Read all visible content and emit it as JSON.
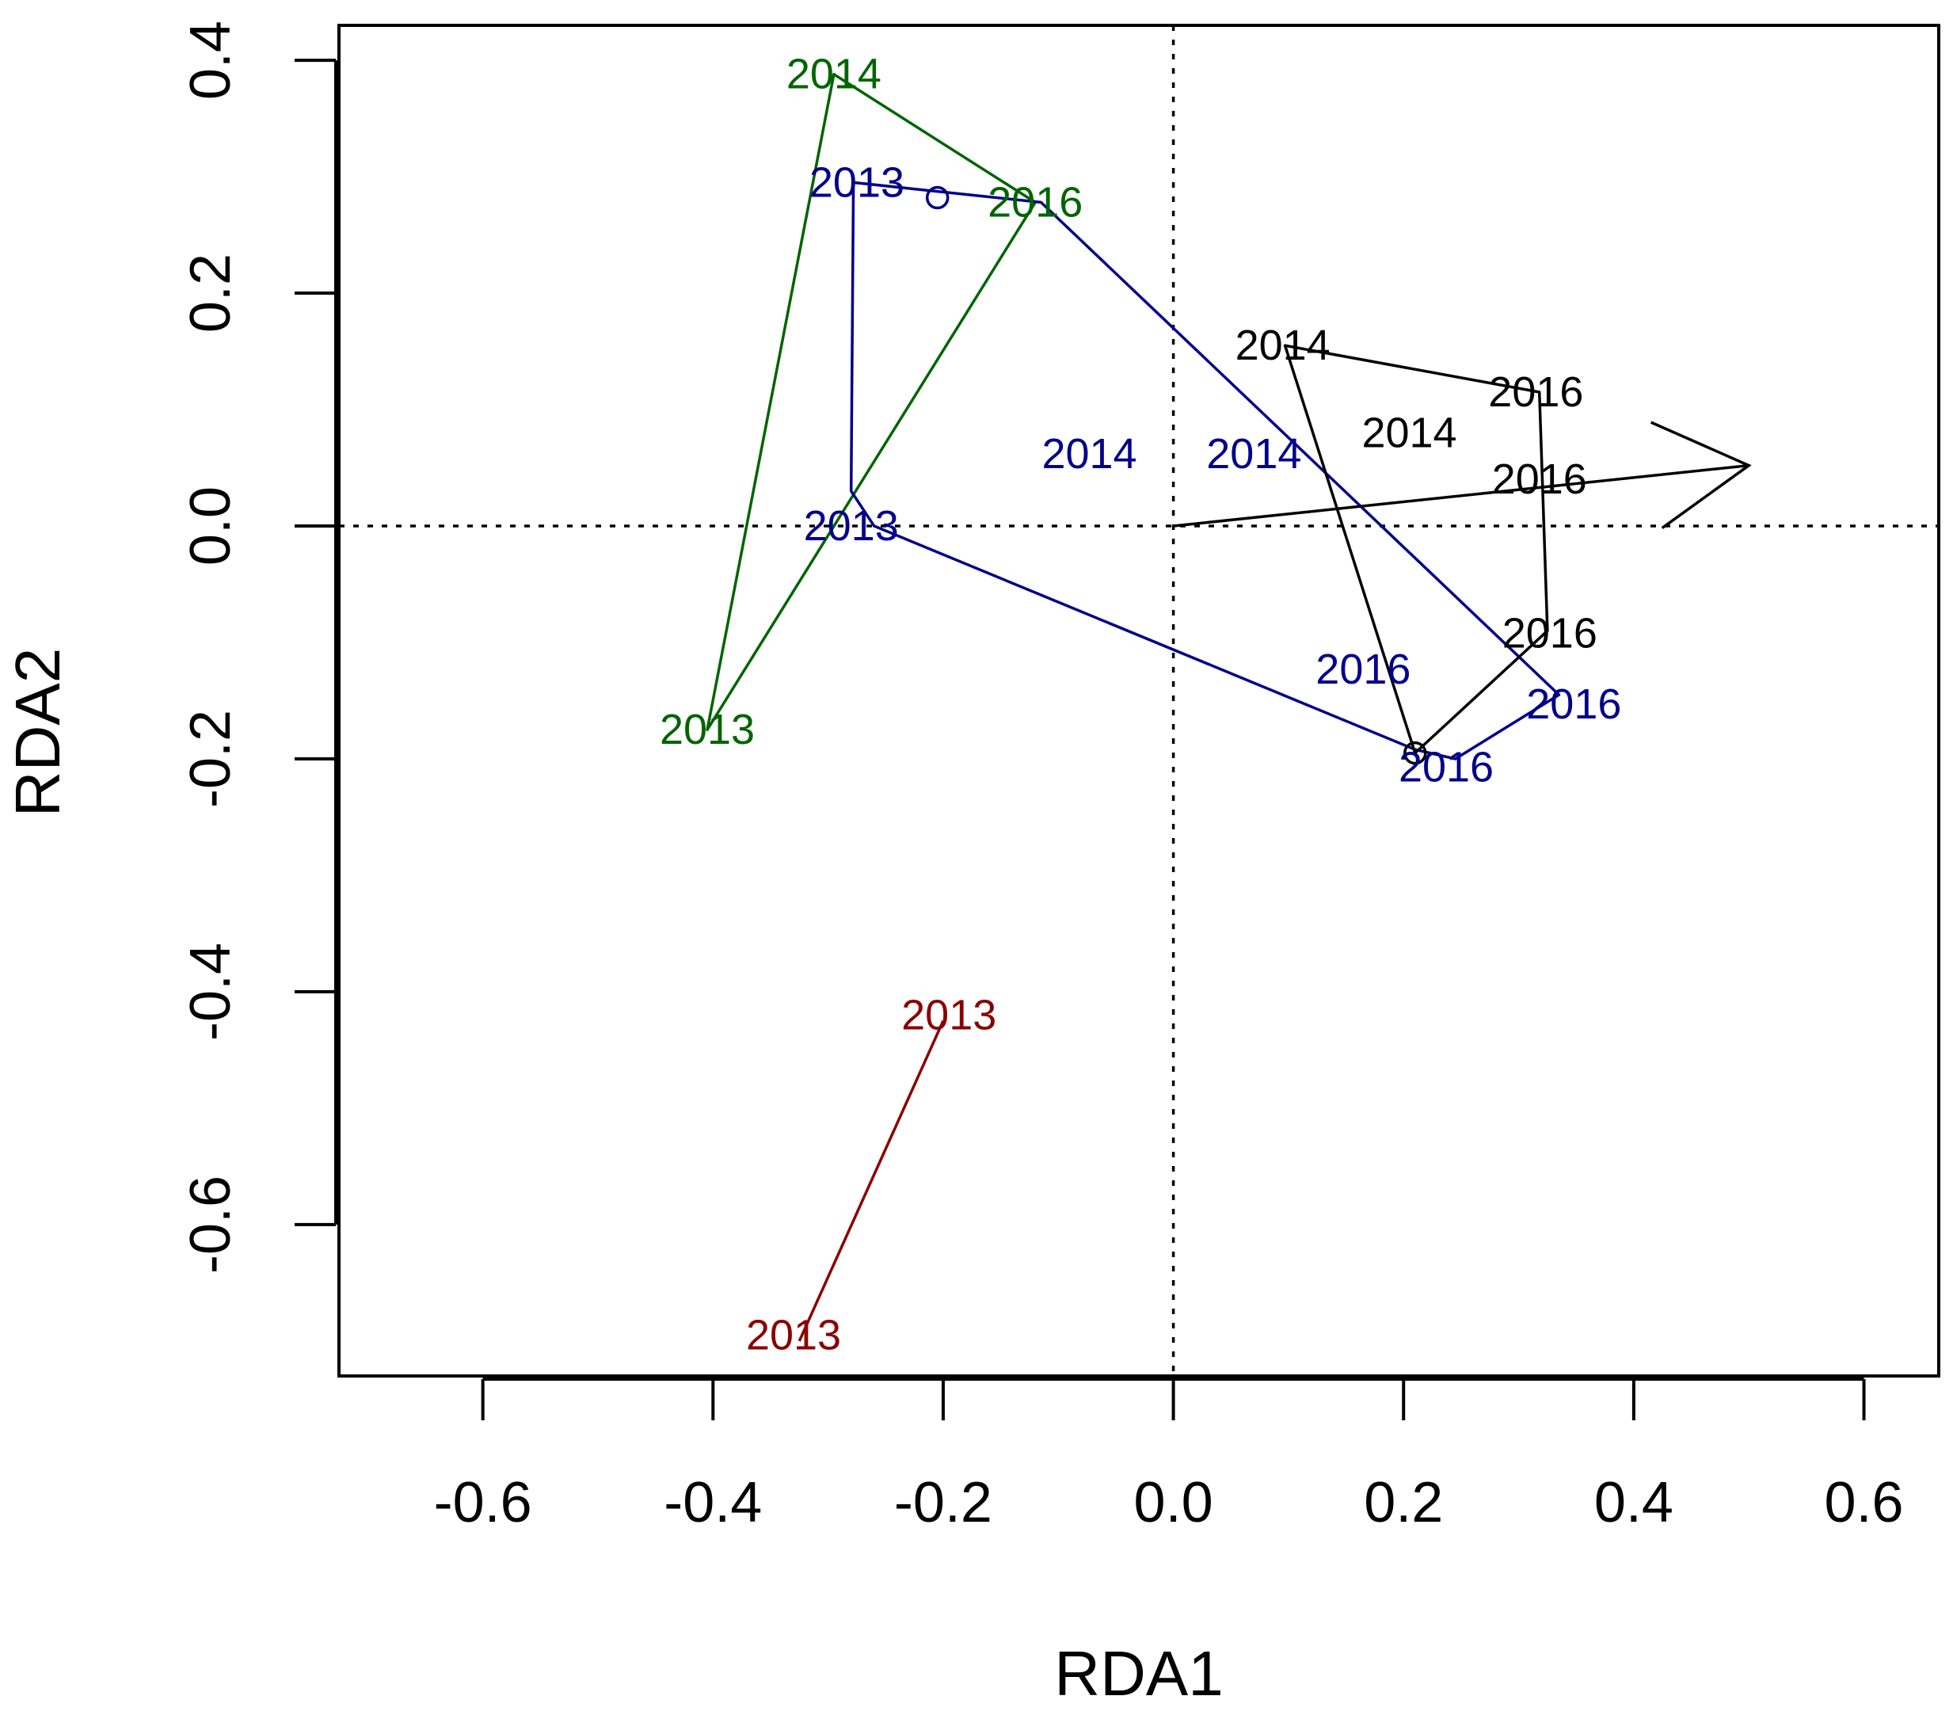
{
  "chart_data": {
    "type": "scatter",
    "subtype": "rda-biplot-with-hull-polygons",
    "xlabel": "RDA1",
    "ylabel": "RDA2",
    "xlim": [
      -0.725,
      0.665
    ],
    "ylim": [
      -0.73,
      0.43
    ],
    "x_ticks": [
      -0.6,
      -0.4,
      -0.2,
      0.0,
      0.2,
      0.4,
      0.6
    ],
    "x_tick_labels": [
      "-0.6",
      "-0.4",
      "-0.2",
      "0.0",
      "0.2",
      "0.4",
      "0.6"
    ],
    "y_ticks": [
      -0.6,
      -0.4,
      -0.2,
      0.0,
      0.2,
      0.4
    ],
    "y_tick_labels": [
      "-0.6",
      "-0.4",
      "-0.2",
      "0.0",
      "0.2",
      "0.4"
    ],
    "reference_lines": {
      "x": 0,
      "y": 0,
      "style": "dotted"
    },
    "colors": {
      "green": "#006400",
      "blue": "#00008B",
      "black": "#000000",
      "red": "#8B0000"
    },
    "series": [
      {
        "name": "green group",
        "color": "#006400",
        "polygon": [
          [
            -0.295,
            0.388
          ],
          [
            -0.12,
            0.278
          ],
          [
            -0.405,
            -0.175
          ]
        ],
        "points": [
          {
            "label": "2014",
            "x": -0.295,
            "y": 0.388
          },
          {
            "label": "2016",
            "x": -0.12,
            "y": 0.278
          },
          {
            "label": "2013",
            "x": -0.405,
            "y": -0.175
          }
        ]
      },
      {
        "name": "blue group",
        "color": "#00008B",
        "polygon": [
          [
            -0.278,
            0.295
          ],
          [
            -0.115,
            0.278
          ],
          [
            0.335,
            -0.145
          ],
          [
            0.245,
            -0.2
          ],
          [
            0.21,
            -0.192
          ],
          [
            -0.26,
            0.0
          ],
          [
            -0.28,
            0.03
          ]
        ],
        "points": [
          {
            "label": "2013",
            "x": -0.275,
            "y": 0.295
          },
          {
            "label": "2013",
            "x": -0.28,
            "y": 0.0
          },
          {
            "label": "2014",
            "x": -0.073,
            "y": 0.062
          },
          {
            "label": "2014",
            "x": 0.07,
            "y": 0.062
          },
          {
            "label": "2016",
            "x": 0.165,
            "y": -0.123
          },
          {
            "label": "2016",
            "x": 0.348,
            "y": -0.153
          },
          {
            "label": "2016",
            "x": 0.237,
            "y": -0.207
          }
        ],
        "centroid": {
          "x": -0.205,
          "y": 0.282
        }
      },
      {
        "name": "black group",
        "color": "#000000",
        "polygon": [
          [
            0.097,
            0.155
          ],
          [
            0.318,
            0.115
          ],
          [
            0.325,
            -0.09
          ],
          [
            0.21,
            -0.195
          ]
        ],
        "points": [
          {
            "label": "2014",
            "x": 0.095,
            "y": 0.155
          },
          {
            "label": "2016",
            "x": 0.315,
            "y": 0.115
          },
          {
            "label": "2014",
            "x": 0.205,
            "y": 0.08
          },
          {
            "label": "2016",
            "x": 0.318,
            "y": 0.04
          },
          {
            "label": "2016",
            "x": 0.327,
            "y": -0.092
          }
        ],
        "centroid": {
          "x": 0.21,
          "y": -0.195
        }
      },
      {
        "name": "red group",
        "color": "#8B0000",
        "polygon": [
          [
            -0.2,
            -0.425
          ],
          [
            -0.325,
            -0.7
          ]
        ],
        "points": [
          {
            "label": "2013",
            "x": -0.195,
            "y": -0.42
          },
          {
            "label": "2013",
            "x": -0.33,
            "y": -0.695
          }
        ]
      }
    ],
    "vector": {
      "from": [
        0.0,
        0.0
      ],
      "to": [
        0.5,
        0.052
      ],
      "color": "#000000",
      "label": ""
    }
  }
}
